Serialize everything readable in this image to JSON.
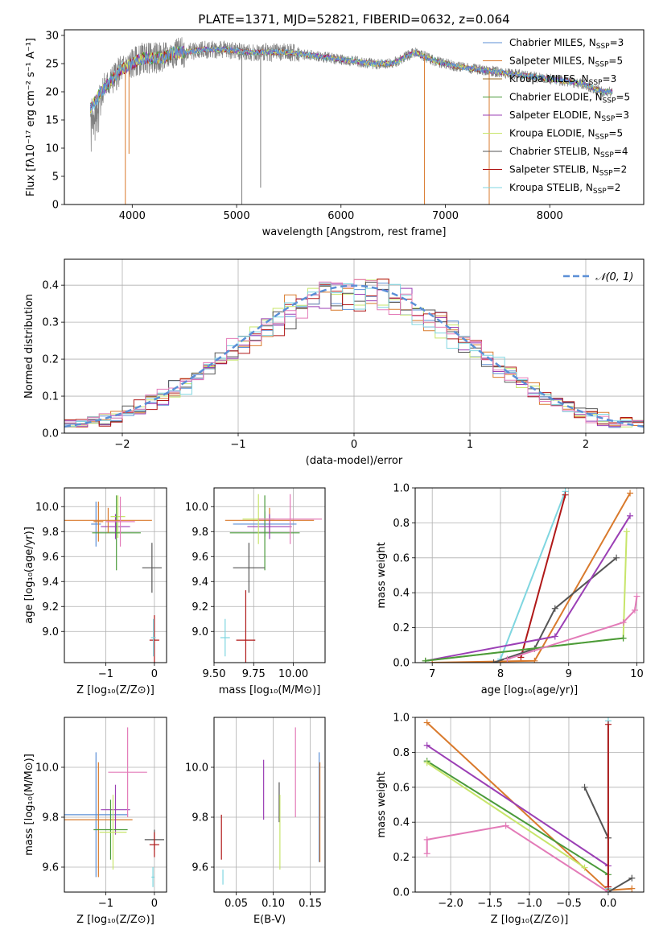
{
  "figure": {
    "title": "PLATE=1371, MJD=52821, FIBERID=0632, z=0.064"
  },
  "colors": {
    "c_chab_miles": "#5b8fd6",
    "c_salp_miles": "#d97a2c",
    "c_kroupa_miles": "#9a6b20",
    "c_chab_elodie": "#4a9a3a",
    "c_salp_elodie": "#9b3fb5",
    "c_kroupa_elodie": "#c7e56a",
    "c_chab_stelib": "#555555",
    "c_salp_stelib": "#b01818",
    "c_kroupa_stelib": "#7fd6e0",
    "c_pink": "#e37bb8",
    "c_data": "#7f7f7f",
    "c_normal": "#5b8fd6"
  },
  "chart_data": [
    {
      "id": "spectrum",
      "type": "line",
      "xlabel": "wavelength [Angstrom, rest frame]",
      "ylabel": "Flux [fλ10⁻¹⁷ erg cm⁻² s⁻¹ A⁻¹]",
      "xlim": [
        3350,
        8900
      ],
      "ylim": [
        0,
        31
      ],
      "xticks": [
        4000,
        5000,
        6000,
        7000,
        8000
      ],
      "yticks": [
        0,
        5,
        10,
        15,
        20,
        25,
        30
      ],
      "continuum": {
        "x": [
          3600,
          3700,
          3800,
          3900,
          4000,
          4100,
          4200,
          4300,
          4400,
          4500,
          4700,
          4900,
          5100,
          5300,
          5500,
          5700,
          5900,
          6100,
          6300,
          6500,
          6600,
          6700,
          6900,
          7100,
          7300,
          7500,
          7700,
          7900,
          8100,
          8300,
          8500,
          8600
        ],
        "y": [
          17,
          20,
          22,
          24,
          25,
          26,
          26,
          26,
          27,
          27,
          27.5,
          27.5,
          27,
          27,
          27,
          26.5,
          26,
          25.5,
          25,
          25,
          26,
          27,
          25.5,
          24.5,
          24,
          23.5,
          23,
          22.5,
          22,
          21.5,
          20,
          20
        ]
      },
      "absorptions": [
        {
          "x": 3934,
          "y": 0
        },
        {
          "x": 3969,
          "y": 9
        },
        {
          "x": 5050,
          "y": 0
        },
        {
          "x": 5230,
          "y": 3
        },
        {
          "x": 6800,
          "y": 0
        },
        {
          "x": 7420,
          "y": 0
        }
      ],
      "legend": [
        {
          "label": "Chabrier MILES, N",
          "sub": "SSP",
          "tail": "=3",
          "color_key": "c_chab_miles"
        },
        {
          "label": "Salpeter MILES, N",
          "sub": "SSP",
          "tail": "=5",
          "color_key": "c_salp_miles"
        },
        {
          "label": "Kroupa MILES, N",
          "sub": "SSP",
          "tail": "=3",
          "color_key": "c_kroupa_miles"
        },
        {
          "label": "Chabrier ELODIE, N",
          "sub": "SSP",
          "tail": "=5",
          "color_key": "c_chab_elodie"
        },
        {
          "label": "Salpeter ELODIE, N",
          "sub": "SSP",
          "tail": "=3",
          "color_key": "c_salp_elodie"
        },
        {
          "label": "Kroupa ELODIE, N",
          "sub": "SSP",
          "tail": "=5",
          "color_key": "c_kroupa_elodie"
        },
        {
          "label": "Chabrier STELIB, N",
          "sub": "SSP",
          "tail": "=4",
          "color_key": "c_chab_stelib"
        },
        {
          "label": "Salpeter STELIB, N",
          "sub": "SSP",
          "tail": "=2",
          "color_key": "c_salp_stelib"
        },
        {
          "label": "Kroupa STELIB, N",
          "sub": "SSP",
          "tail": "=2",
          "color_key": "c_kroupa_stelib"
        }
      ]
    },
    {
      "id": "residuals",
      "type": "line",
      "xlabel": "(data-model)/error",
      "ylabel": "Normed distribution",
      "xlim": [
        -2.5,
        2.5
      ],
      "ylim": [
        0,
        0.47
      ],
      "xticks": [
        -2,
        -1,
        0,
        1,
        2
      ],
      "yticks": [
        0.0,
        0.1,
        0.2,
        0.3,
        0.4
      ],
      "grid": true,
      "legend": [
        {
          "label": "𝒩(0, 1)",
          "color_key": "c_normal",
          "dashed": true
        }
      ],
      "bin_width": 0.1,
      "series": [
        {
          "color_key": "c_salp_miles",
          "seed": 3
        },
        {
          "color_key": "c_chab_miles",
          "seed": 7
        },
        {
          "color_key": "c_kroupa_elodie",
          "seed": 11
        },
        {
          "color_key": "c_salp_elodie",
          "seed": 17
        },
        {
          "color_key": "c_chab_stelib",
          "seed": 23
        },
        {
          "color_key": "c_salp_stelib",
          "seed": 29
        },
        {
          "color_key": "c_kroupa_stelib",
          "seed": 31
        },
        {
          "color_key": "c_pink",
          "seed": 37
        }
      ]
    },
    {
      "id": "age_vs_Z",
      "type": "scatter",
      "xlabel": "Z [log₁₀(Z/Z⊙)]",
      "ylabel": "age  [log₁₀(age/yr)]",
      "xlim": [
        -1.85,
        0.25
      ],
      "ylim": [
        8.75,
        10.15
      ],
      "xticks": [
        -1,
        0
      ],
      "yticks": [
        9.0,
        9.2,
        9.4,
        9.6,
        9.8,
        10.0
      ],
      "grid": true,
      "points": [
        {
          "x": -1.2,
          "y": 9.86,
          "ex": 0.1,
          "ey": 0.18,
          "color_key": "c_chab_miles"
        },
        {
          "x": -1.15,
          "y": 9.88,
          "ex": 0.1,
          "ey": 0.16,
          "color_key": "c_salp_miles"
        },
        {
          "x": -0.8,
          "y": 9.84,
          "ex": 0.3,
          "ey": 0.1,
          "color_key": "c_salp_elodie"
        },
        {
          "x": -0.75,
          "y": 9.92,
          "ex": 0.15,
          "ey": 0.17,
          "color_key": "c_kroupa_elodie"
        },
        {
          "x": -0.78,
          "y": 9.79,
          "ex": 0.5,
          "ey": 0.3,
          "color_key": "c_chab_elodie"
        },
        {
          "x": -0.95,
          "y": 9.89,
          "ex": 0.9,
          "ey": 0.1,
          "color_key": "c_salp_miles"
        },
        {
          "x": -0.7,
          "y": 9.88,
          "ex": 0.3,
          "ey": 0.2,
          "color_key": "c_pink"
        },
        {
          "x": -0.05,
          "y": 9.51,
          "ex": 0.2,
          "ey": 0.2,
          "color_key": "c_chab_stelib"
        },
        {
          "x": 0.0,
          "y": 8.93,
          "ex": 0.1,
          "ey": 0.2,
          "color_key": "c_salp_stelib"
        },
        {
          "x": -0.02,
          "y": 8.95,
          "ex": 0.05,
          "ey": 0.15,
          "color_key": "c_kroupa_stelib"
        }
      ]
    },
    {
      "id": "age_vs_mass",
      "type": "scatter",
      "xlabel": "mass [log₁₀(M/M⊙)]",
      "ylabel": "",
      "xlim": [
        9.5,
        10.2
      ],
      "ylim": [
        8.75,
        10.15
      ],
      "xticks": [
        9.5,
        9.75,
        10.0
      ],
      "xtick_labels": [
        "9.50",
        "9.75",
        "10.00"
      ],
      "yticks": [
        9.0,
        9.2,
        9.4,
        9.6,
        9.8,
        10.0
      ],
      "grid": true,
      "points": [
        {
          "x": 9.82,
          "y": 9.86,
          "ex": 0.2,
          "ey": 0.1,
          "color_key": "c_chab_miles"
        },
        {
          "x": 9.85,
          "y": 9.89,
          "ex": 0.28,
          "ey": 0.1,
          "color_key": "c_salp_miles"
        },
        {
          "x": 9.82,
          "y": 9.79,
          "ex": 0.22,
          "ey": 0.3,
          "color_key": "c_chab_elodie"
        },
        {
          "x": 9.85,
          "y": 9.84,
          "ex": 0.14,
          "ey": 0.1,
          "color_key": "c_salp_elodie"
        },
        {
          "x": 9.78,
          "y": 9.9,
          "ex": 0.1,
          "ey": 0.2,
          "color_key": "c_kroupa_elodie"
        },
        {
          "x": 9.98,
          "y": 9.9,
          "ex": 0.2,
          "ey": 0.2,
          "color_key": "c_pink"
        },
        {
          "x": 9.72,
          "y": 9.51,
          "ex": 0.1,
          "ey": 0.2,
          "color_key": "c_chab_stelib"
        },
        {
          "x": 9.7,
          "y": 8.93,
          "ex": 0.06,
          "ey": 0.4,
          "color_key": "c_salp_stelib"
        },
        {
          "x": 9.57,
          "y": 8.95,
          "ex": 0.03,
          "ey": 0.15,
          "color_key": "c_kroupa_stelib"
        }
      ]
    },
    {
      "id": "mass_weight_vs_age",
      "type": "line",
      "xlabel": "age  [log₁₀(age/yr)]",
      "ylabel": "mass weight",
      "xlim": [
        6.75,
        10.1
      ],
      "ylim": [
        0,
        1
      ],
      "xticks": [
        7,
        8,
        9,
        10
      ],
      "yticks": [
        0.0,
        0.2,
        0.4,
        0.6,
        0.8,
        1.0
      ],
      "grid": true,
      "series": [
        {
          "color_key": "c_kroupa_stelib",
          "x": [
            8.0,
            8.95
          ],
          "y": [
            0.02,
            0.98
          ]
        },
        {
          "color_key": "c_salp_stelib",
          "x": [
            8.3,
            8.95
          ],
          "y": [
            0.03,
            0.96
          ]
        },
        {
          "color_key": "c_salp_miles",
          "x": [
            7.0,
            8.5,
            9.9
          ],
          "y": [
            0.0,
            0.01,
            0.97
          ]
        },
        {
          "color_key": "c_chab_stelib",
          "x": [
            7.9,
            8.5,
            8.8,
            9.7
          ],
          "y": [
            0.0,
            0.08,
            0.31,
            0.6
          ]
        },
        {
          "color_key": "c_salp_elodie",
          "x": [
            6.9,
            8.8,
            9.9
          ],
          "y": [
            0.01,
            0.15,
            0.84
          ]
        },
        {
          "color_key": "c_kroupa_elodie",
          "x": [
            6.9,
            9.8,
            9.85
          ],
          "y": [
            0.01,
            0.14,
            0.75
          ]
        },
        {
          "color_key": "c_chab_elodie",
          "x": [
            6.9,
            9.8
          ],
          "y": [
            0.01,
            0.14
          ]
        },
        {
          "color_key": "c_pink",
          "x": [
            8.1,
            9.8,
            9.97,
            10.0
          ],
          "y": [
            0.02,
            0.23,
            0.3,
            0.38
          ]
        }
      ]
    },
    {
      "id": "mass_vs_Z",
      "type": "scatter",
      "xlabel": "Z [log₁₀(Z/Z⊙)]",
      "ylabel": "mass [log₁₀(M/M⊙)]",
      "xlim": [
        -1.85,
        0.25
      ],
      "ylim": [
        9.5,
        10.2
      ],
      "xticks": [
        -1,
        0
      ],
      "yticks": [
        9.6,
        9.8,
        10.0
      ],
      "grid": true,
      "points": [
        {
          "x": -1.2,
          "y": 9.81,
          "ex": 0.66,
          "ey": 0.25,
          "color_key": "c_chab_miles"
        },
        {
          "x": -1.15,
          "y": 9.79,
          "ex": 0.7,
          "ey": 0.23,
          "color_key": "c_salp_miles"
        },
        {
          "x": -0.8,
          "y": 9.83,
          "ex": 0.3,
          "ey": 0.1,
          "color_key": "c_salp_elodie"
        },
        {
          "x": -0.9,
          "y": 9.75,
          "ex": 0.35,
          "ey": 0.12,
          "color_key": "c_chab_elodie"
        },
        {
          "x": -0.85,
          "y": 9.74,
          "ex": 0.28,
          "ey": 0.15,
          "color_key": "c_kroupa_elodie"
        },
        {
          "x": -0.55,
          "y": 9.98,
          "ex": 0.4,
          "ey": 0.18,
          "color_key": "c_pink"
        },
        {
          "x": 0.0,
          "y": 9.71,
          "ex": 0.2,
          "ey": 0.04,
          "color_key": "c_chab_stelib"
        },
        {
          "x": 0.0,
          "y": 9.69,
          "ex": 0.1,
          "ey": 0.05,
          "color_key": "c_salp_stelib"
        },
        {
          "x": -0.03,
          "y": 9.56,
          "ex": 0.03,
          "ey": 0.04,
          "color_key": "c_kroupa_stelib"
        }
      ]
    },
    {
      "id": "mass_vs_ebv",
      "type": "scatter",
      "xlabel": "E(B-V)",
      "ylabel": "",
      "xlim": [
        0.02,
        0.17
      ],
      "ylim": [
        9.5,
        10.2
      ],
      "xticks": [
        0.05,
        0.1,
        0.15
      ],
      "xtick_labels": [
        "0.05",
        "0.10",
        "0.15"
      ],
      "yticks": [
        9.6,
        9.8,
        10.0
      ],
      "grid": true,
      "points": [
        {
          "x": 0.03,
          "y": 9.72,
          "ex": 0.0,
          "ey": 0.09,
          "color_key": "c_salp_stelib"
        },
        {
          "x": 0.032,
          "y": 9.56,
          "ex": 0.0,
          "ey": 0.03,
          "color_key": "c_kroupa_stelib"
        },
        {
          "x": 0.087,
          "y": 9.91,
          "ex": 0.0,
          "ey": 0.12,
          "color_key": "c_salp_elodie"
        },
        {
          "x": 0.108,
          "y": 9.86,
          "ex": 0.0,
          "ey": 0.08,
          "color_key": "c_chab_stelib"
        },
        {
          "x": 0.109,
          "y": 9.74,
          "ex": 0.0,
          "ey": 0.15,
          "color_key": "c_kroupa_elodie"
        },
        {
          "x": 0.13,
          "y": 9.98,
          "ex": 0.0,
          "ey": 0.18,
          "color_key": "c_pink"
        },
        {
          "x": 0.162,
          "y": 9.84,
          "ex": 0.0,
          "ey": 0.22,
          "color_key": "c_chab_miles"
        },
        {
          "x": 0.163,
          "y": 9.82,
          "ex": 0.0,
          "ey": 0.2,
          "color_key": "c_salp_miles"
        }
      ]
    },
    {
      "id": "mass_weight_vs_Z",
      "type": "line",
      "xlabel": "Z [log₁₀(Z/Z⊙)]",
      "ylabel": "mass weight",
      "xlim": [
        -2.45,
        0.45
      ],
      "ylim": [
        0,
        1
      ],
      "xticks": [
        -2.0,
        -1.5,
        -1.0,
        -0.5,
        0.0
      ],
      "xtick_labels": [
        "−2.0",
        "−1.5",
        "−1.0",
        "−0.5",
        "0.0"
      ],
      "yticks": [
        0.0,
        0.2,
        0.4,
        0.6,
        0.8,
        1.0
      ],
      "grid": true,
      "series": [
        {
          "color_key": "c_salp_miles",
          "x": [
            -2.3,
            0.0,
            0.3
          ],
          "y": [
            0.97,
            0.01,
            0.02
          ]
        },
        {
          "color_key": "c_salp_elodie",
          "x": [
            -2.3,
            0.0
          ],
          "y": [
            0.84,
            0.15
          ]
        },
        {
          "color_key": "c_chab_elodie",
          "x": [
            -2.3,
            0.0
          ],
          "y": [
            0.75,
            0.1
          ]
        },
        {
          "color_key": "c_kroupa_elodie",
          "x": [
            -2.3,
            -0.3
          ],
          "y": [
            0.74,
            0.14
          ]
        },
        {
          "color_key": "c_chab_stelib",
          "x": [
            -0.3,
            0.0,
            0.0,
            0.3
          ],
          "y": [
            0.6,
            0.31,
            0.0,
            0.08
          ]
        },
        {
          "color_key": "c_pink",
          "x": [
            -2.3,
            -2.3,
            -1.3,
            0.0
          ],
          "y": [
            0.22,
            0.3,
            0.38,
            0.0
          ]
        },
        {
          "color_key": "c_kroupa_stelib",
          "x": [
            0.0,
            0.0
          ],
          "y": [
            0.02,
            0.98
          ]
        },
        {
          "color_key": "c_salp_stelib",
          "x": [
            0.0,
            0.0
          ],
          "y": [
            0.03,
            0.96
          ]
        }
      ]
    }
  ]
}
